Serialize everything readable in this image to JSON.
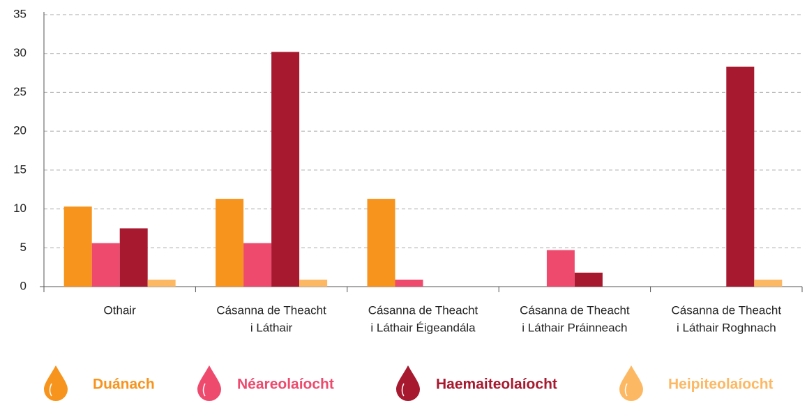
{
  "chart_data": {
    "type": "bar",
    "categories": [
      [
        "Othair"
      ],
      [
        "Cásanna de Theacht",
        "i Láthair"
      ],
      [
        "Cásanna de Theacht",
        "i Láthair Éigeandála"
      ],
      [
        "Cásanna de Theacht",
        "i Láthair Práinneach"
      ],
      [
        "Cásanna de Theacht",
        "i Láthair Roghnach"
      ]
    ],
    "series": [
      {
        "name": "Duánach",
        "color": "#f7941d",
        "values": [
          10.3,
          11.3,
          11.3,
          0,
          0
        ]
      },
      {
        "name": "Néareolaíocht",
        "color": "#ee4a6e",
        "values": [
          5.6,
          5.6,
          0.9,
          4.7,
          0
        ]
      },
      {
        "name": "Haemaiteolaíocht",
        "color": "#a6192e",
        "values": [
          7.5,
          30.2,
          0,
          1.8,
          28.3
        ]
      },
      {
        "name": "Heipiteolaíocht",
        "color": "#fdb863",
        "values": [
          0.9,
          0.9,
          0,
          0,
          0.9
        ]
      }
    ],
    "ylim": [
      0,
      35
    ],
    "yticks": [
      0,
      5,
      10,
      15,
      20,
      25,
      30,
      35
    ],
    "grid": true,
    "legend": "bottom"
  }
}
